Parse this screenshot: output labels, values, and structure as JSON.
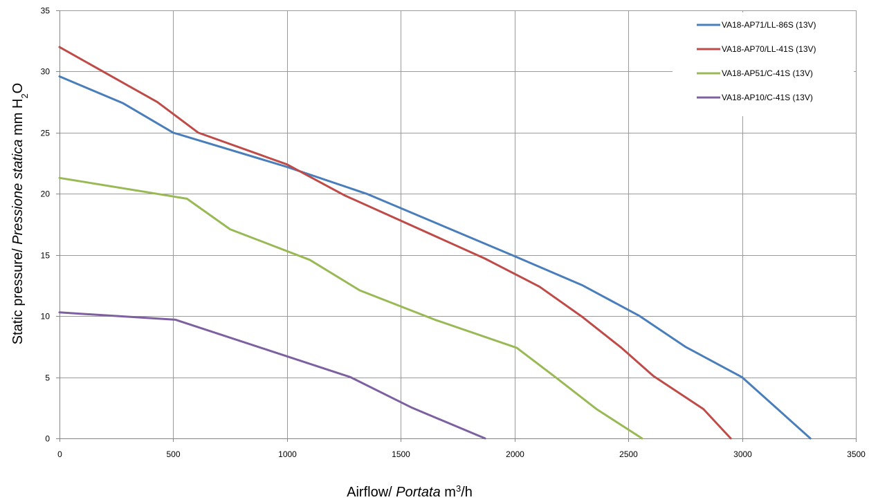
{
  "chart_data": {
    "type": "line",
    "xlabel": {
      "prefix": "Airflow/ ",
      "italic": "Portata",
      "unit": " m",
      "sup": "3",
      "suffix": "/h"
    },
    "ylabel": {
      "prefix": "Static pressure/ ",
      "italic": "Pressione statica",
      "unit": " mm  H",
      "sub": "2",
      "suffix": "O"
    },
    "xlim": [
      0,
      3500
    ],
    "ylim": [
      0,
      35
    ],
    "x_ticks": [
      0,
      500,
      1000,
      1500,
      2000,
      2500,
      3000,
      3500
    ],
    "y_ticks": [
      0,
      5,
      10,
      15,
      20,
      25,
      30,
      35
    ],
    "grid": true,
    "legend_position": "top-right",
    "series": [
      {
        "name": "VA18-AP71/LL-86S (13V)",
        "color": "#4a7ebb",
        "points": [
          [
            0,
            29.6
          ],
          [
            280,
            27.4
          ],
          [
            500,
            25.0
          ],
          [
            1000,
            22.2
          ],
          [
            1350,
            20.0
          ],
          [
            2000,
            14.9
          ],
          [
            2300,
            12.5
          ],
          [
            2550,
            10.0
          ],
          [
            2750,
            7.5
          ],
          [
            3000,
            5.0
          ],
          [
            3150,
            2.5
          ],
          [
            3300,
            0
          ]
        ]
      },
      {
        "name": "VA18-AP70/LL-41S (13V)",
        "color": "#be4b48",
        "points": [
          [
            0,
            32.0
          ],
          [
            430,
            27.5
          ],
          [
            610,
            25.0
          ],
          [
            1000,
            22.4
          ],
          [
            1250,
            19.9
          ],
          [
            1870,
            14.7
          ],
          [
            2110,
            12.4
          ],
          [
            2300,
            9.9
          ],
          [
            2470,
            7.4
          ],
          [
            2610,
            5.1
          ],
          [
            2830,
            2.4
          ],
          [
            2950,
            0
          ]
        ]
      },
      {
        "name": "VA18-AP51/C-41S (13V)",
        "color": "#98b954",
        "points": [
          [
            0,
            21.3
          ],
          [
            560,
            19.6
          ],
          [
            750,
            17.1
          ],
          [
            1100,
            14.6
          ],
          [
            1320,
            12.1
          ],
          [
            1650,
            9.7
          ],
          [
            2010,
            7.4
          ],
          [
            2180,
            5.0
          ],
          [
            2360,
            2.4
          ],
          [
            2560,
            0
          ]
        ]
      },
      {
        "name": "VA18-AP10/C-41S (13V)",
        "color": "#7d60a0",
        "points": [
          [
            0,
            10.3
          ],
          [
            510,
            9.7
          ],
          [
            1280,
            5.0
          ],
          [
            1550,
            2.5
          ],
          [
            1870,
            0
          ]
        ]
      }
    ]
  }
}
